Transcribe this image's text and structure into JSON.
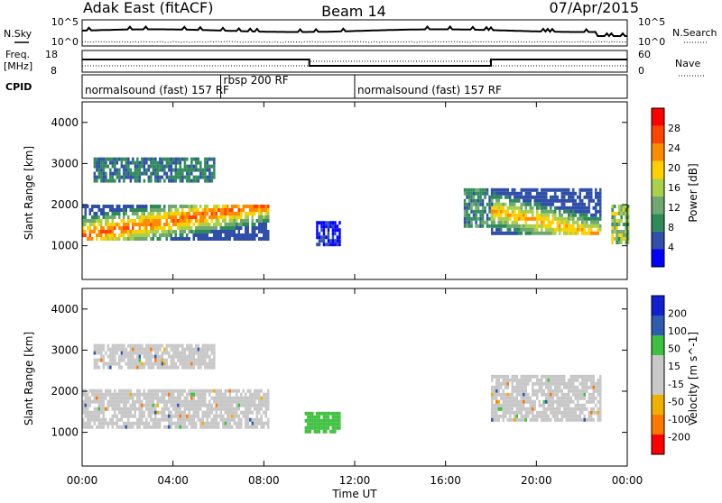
{
  "header": {
    "title": "Adak East (fitACF)",
    "beam": "Beam 14",
    "date": "07/Apr/2015"
  },
  "noise_panel": {
    "left_label": "N.Sky",
    "right_label": "N.Search",
    "left_ticks": [
      "10^5",
      "10^0"
    ],
    "right_ticks": [
      "10^5",
      "10^0"
    ]
  },
  "freq_panel": {
    "left_label_1": "Freq.",
    "left_label_2": "[MHz]",
    "left_ticks": [
      "18",
      "8"
    ],
    "right_label": "Nave",
    "right_ticks": [
      "60",
      "0"
    ]
  },
  "cpid_panel": {
    "label": "CPID",
    "segments": [
      {
        "start": 0,
        "end": 6.1,
        "text": "normalsound (fast) 157 RF"
      },
      {
        "start": 6.1,
        "end": 12.0,
        "text": "rbsp 200 RF"
      },
      {
        "start": 12.0,
        "end": 24.0,
        "text": "normalsound (fast) 157 RF"
      }
    ]
  },
  "colors": {
    "power_scale": [
      "#0000ff",
      "#2f4fa8",
      "#2e8b57",
      "#6fa870",
      "#a8d048",
      "#ffd000",
      "#ff8c00",
      "#ff4400",
      "#ff0000"
    ],
    "velocity_scale": [
      "#ff0000",
      "#ff7800",
      "#f0b000",
      "#c8c8c8",
      "#c8c8c8",
      "#40c040",
      "#305cb0",
      "#1020d0"
    ],
    "ground_scatter": "#c8c8c8"
  },
  "chart_data": {
    "type": "heatmap",
    "x_label": "Time UT",
    "x_ticks": [
      "00:00",
      "04:00",
      "08:00",
      "12:00",
      "16:00",
      "20:00",
      "00:00"
    ],
    "x_range_hours": [
      0,
      24
    ],
    "y_label": "Slant Range [km]",
    "y_ticks": [
      "1000",
      "2000",
      "3000",
      "4000"
    ],
    "y_range_km": [
      180,
      4500
    ],
    "panels": [
      {
        "name": "power",
        "colorbar_label": "Power [dB]",
        "colorbar_ticks": [
          "4",
          "8",
          "12",
          "16",
          "20",
          "24",
          "28"
        ],
        "value_range": [
          0,
          32
        ],
        "features": [
          {
            "t0": 0.0,
            "t1": 8.2,
            "r0": 1150,
            "r1": 2000,
            "ridge_start": 1300,
            "ridge_end": 2050,
            "peak_db": 28
          },
          {
            "t0": 0.5,
            "t1": 5.8,
            "r0": 2550,
            "r1": 3150,
            "peak_db": 14
          },
          {
            "t0": 10.3,
            "t1": 11.3,
            "r0": 1000,
            "r1": 1600,
            "peak_db": 6
          },
          {
            "t0": 16.8,
            "t1": 18.0,
            "r0": 1500,
            "r1": 2400,
            "peak_db": 16
          },
          {
            "t0": 18.0,
            "t1": 22.8,
            "r0": 1300,
            "r1": 2400,
            "ridge_start": 1900,
            "ridge_end": 1300,
            "peak_db": 24
          },
          {
            "t0": 23.3,
            "t1": 24.0,
            "r0": 1050,
            "r1": 2000,
            "peak_db": 26
          }
        ]
      },
      {
        "name": "velocity",
        "colorbar_label": "Velocity [m s^-1]",
        "colorbar_ticks": [
          "200",
          "100",
          "50",
          "15",
          "-15",
          "-50",
          "-100",
          "-200"
        ],
        "value_range": [
          -200,
          200
        ],
        "features": [
          {
            "t0": 0.0,
            "t1": 8.2,
            "r0": 1150,
            "r1": 2050,
            "v": 0
          },
          {
            "t0": 0.5,
            "t1": 5.8,
            "r0": 2550,
            "r1": 3150,
            "v": 0
          },
          {
            "t0": 9.8,
            "t1": 11.3,
            "r0": 1050,
            "r1": 1500,
            "v": 60
          },
          {
            "t0": 18.0,
            "t1": 22.8,
            "r0": 1300,
            "r1": 2400,
            "v": 0
          }
        ]
      }
    ]
  }
}
